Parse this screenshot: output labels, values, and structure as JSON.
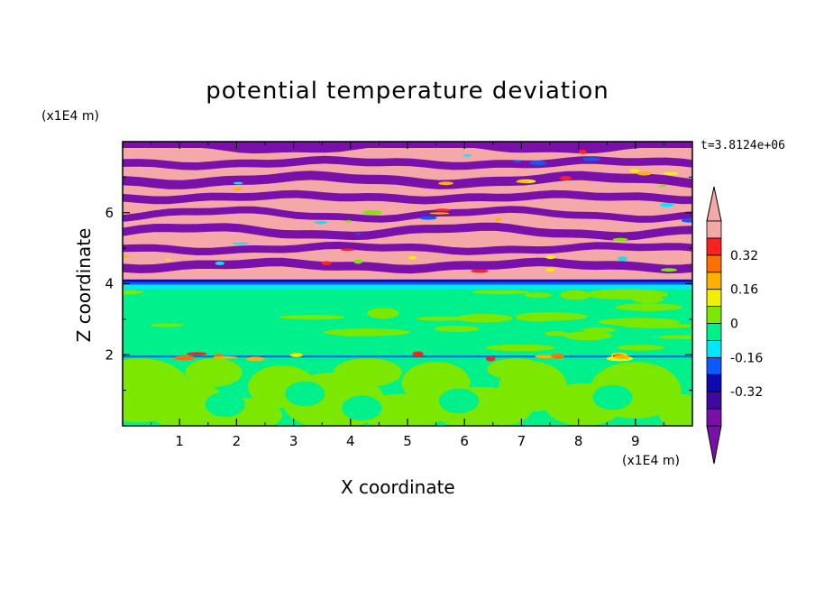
{
  "chart_data": {
    "type": "heatmap",
    "title": "potential temperature deviation",
    "xlabel": "X coordinate",
    "ylabel": "Z coordinate",
    "x_unit": "(x1E4 m)",
    "y_unit": "(x1E4 m)",
    "time_label": "t=3.8124e+06",
    "xlim": [
      0,
      10
    ],
    "ylim": [
      0,
      8
    ],
    "x_ticks": [
      "1",
      "2",
      "3",
      "4",
      "5",
      "6",
      "7",
      "8",
      "9"
    ],
    "y_ticks": [
      "2",
      "4",
      "6"
    ],
    "colorbar": {
      "levels": [
        -0.48,
        -0.4,
        -0.32,
        -0.24,
        -0.16,
        -0.08,
        0,
        0.08,
        0.16,
        0.24,
        0.32,
        0.4,
        0.48
      ],
      "labels": [
        "0.32",
        "0.16",
        "0",
        "-0.16",
        "-0.32"
      ],
      "label_values": [
        0.32,
        0.16,
        0,
        -0.16,
        -0.32
      ],
      "colors": [
        "#7a10aa",
        "#3c0aa0",
        "#0a0ab0",
        "#0a5aff",
        "#00e8ff",
        "#00f08c",
        "#7ce800",
        "#f0f000",
        "#ffb000",
        "#ff7000",
        "#ff2020",
        "#f5a8a8"
      ],
      "extend": "both"
    },
    "layers": [
      {
        "z_range": [
          0,
          1.95
        ],
        "description_colors": [
          "#00f08c",
          "#7ce800"
        ]
      },
      {
        "z_range": [
          1.95,
          4.0
        ],
        "description_colors": [
          "#00f08c",
          "#7ce800"
        ]
      },
      {
        "z_range": [
          4.0,
          8.0
        ],
        "description_colors": [
          "#7a10aa",
          "#f5a8a8"
        ]
      }
    ]
  }
}
